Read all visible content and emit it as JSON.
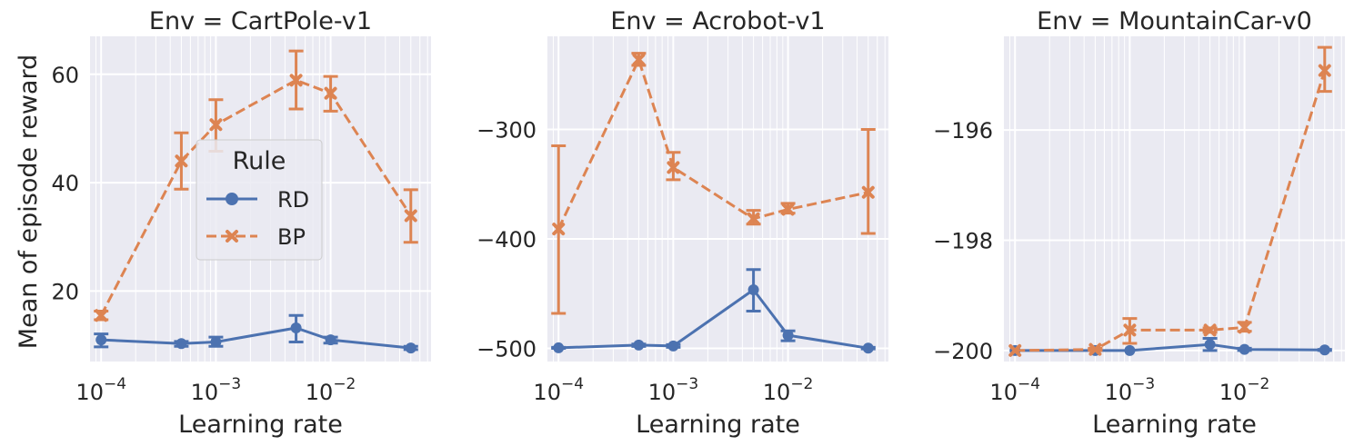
{
  "figure": {
    "ylabel": "Mean of episode reward",
    "xlabel": "Learning rate",
    "x_scale": "log",
    "grid": true,
    "colors": {
      "RD": "#4c72b0",
      "BP": "#dd8452",
      "panel_bg": "#eaeaf2",
      "grid": "#ffffff"
    }
  },
  "legend": {
    "title": "Rule",
    "entries": [
      {
        "name": "RD",
        "marker": "circle",
        "style": "solid"
      },
      {
        "name": "BP",
        "marker": "x",
        "style": "dashed"
      }
    ],
    "placement": "center-left of first panel"
  },
  "chart_data": [
    {
      "type": "line",
      "title": "Env = CartPole-v1",
      "xlabel": "Learning rate",
      "ylabel": "Mean of episode reward",
      "x_scale": "log",
      "xlim": [
        8e-05,
        0.075
      ],
      "ylim": [
        7,
        67
      ],
      "yticks": [
        20,
        40,
        60
      ],
      "ytick_labels": [
        "20",
        "40",
        "60"
      ],
      "x": [
        0.0001,
        0.0005,
        0.001,
        0.005,
        0.01,
        0.05
      ],
      "series": [
        {
          "name": "RD",
          "values": [
            11.0,
            10.3,
            10.6,
            13.2,
            11.0,
            9.5
          ],
          "err_low": [
            9.7,
            9.8,
            9.8,
            10.6,
            10.4,
            9.2
          ],
          "err_high": [
            12.1,
            10.7,
            11.5,
            15.5,
            11.5,
            9.8
          ]
        },
        {
          "name": "BP",
          "values": [
            15.5,
            44.0,
            50.7,
            58.9,
            56.5,
            33.9
          ],
          "err_low": [
            14.7,
            38.8,
            45.8,
            53.6,
            53.2,
            29.0
          ],
          "err_high": [
            16.3,
            49.2,
            55.3,
            64.3,
            59.6,
            38.7
          ]
        }
      ]
    },
    {
      "type": "line",
      "title": "Env = Acrobot-v1",
      "xlabel": "Learning rate",
      "x_scale": "log",
      "xlim": [
        8e-05,
        0.075
      ],
      "ylim": [
        -512,
        -215
      ],
      "yticks": [
        -500,
        -400,
        -300
      ],
      "ytick_labels": [
        "−500",
        "−400",
        "−300"
      ],
      "x": [
        0.0001,
        0.0005,
        0.001,
        0.005,
        0.01,
        0.05
      ],
      "series": [
        {
          "name": "RD",
          "values": [
            -499.5,
            -497.0,
            -497.8,
            -446.5,
            -488.0,
            -499.8
          ],
          "err_low": [
            -500,
            -498.2,
            -499,
            -466,
            -493,
            -500.5
          ],
          "err_high": [
            -499,
            -496,
            -496.5,
            -428,
            -484,
            -499
          ]
        },
        {
          "name": "BP",
          "values": [
            -391.0,
            -236.3,
            -334.8,
            -381.6,
            -373.0,
            -357.5
          ],
          "err_low": [
            -468,
            -241.5,
            -346,
            -386.5,
            -376.5,
            -395
          ],
          "err_high": [
            -315,
            -230.5,
            -321,
            -374,
            -367.5,
            -300
          ]
        }
      ]
    },
    {
      "type": "line",
      "title": "Env = MountainCar-v0",
      "xlabel": "Learning rate",
      "x_scale": "log",
      "xlim": [
        8e-05,
        0.075
      ],
      "ylim": [
        -200.2,
        -194.3
      ],
      "yticks": [
        -200,
        -198,
        -196
      ],
      "ytick_labels": [
        "−200",
        "−198",
        "−196"
      ],
      "x": [
        0.0001,
        0.0005,
        0.001,
        0.005,
        0.01,
        0.05
      ],
      "series": [
        {
          "name": "RD",
          "values": [
            -200.0,
            -200.0,
            -200.0,
            -199.89,
            -199.98,
            -199.99
          ],
          "err_low": [
            -200.0,
            -200.0,
            -200.0,
            -200.0,
            -200.0,
            -200.0
          ],
          "err_high": [
            -200.0,
            -200.0,
            -200.0,
            -199.78,
            -199.96,
            -199.98
          ]
        },
        {
          "name": "BP",
          "values": [
            -200.0,
            -199.98,
            -199.63,
            -199.63,
            -199.58,
            -194.92
          ],
          "err_low": [
            -200.0,
            -200.0,
            -199.87,
            -199.67,
            -199.65,
            -195.3
          ],
          "err_high": [
            -200.0,
            -199.96,
            -199.42,
            -199.59,
            -199.49,
            -194.5
          ]
        }
      ]
    }
  ]
}
